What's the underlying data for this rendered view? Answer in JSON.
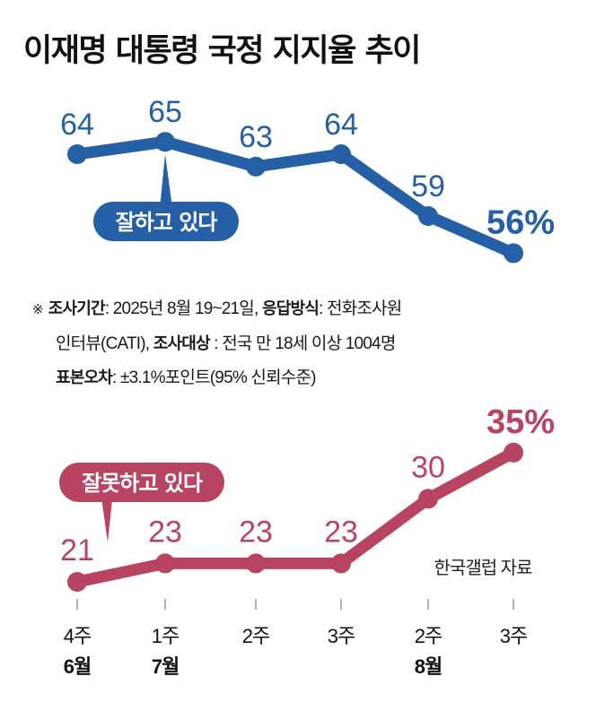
{
  "title": "이재명 대통령 국정 지지율 추이",
  "colors": {
    "approve": "#2560a6",
    "disapprove": "#b94461",
    "text": "#111111"
  },
  "note": {
    "mark": "※",
    "l1_b1": "조사기간",
    "l1_t1": ": 2025년 8월 19~21일, ",
    "l1_b2": "응답방식",
    "l1_t2": ": 전화조사원",
    "l2_t1": "인터뷰(CATI), ",
    "l2_b1": "조사대상",
    "l2_t2": " : 전국 만 18세 이상 1004명",
    "l3_b1": "표본오차",
    "l3_t1": ": ±3.1%포인트(95% 신뢰수준)"
  },
  "source": "한국갤럽 자료",
  "chart_data": {
    "type": "line",
    "title": "이재명 대통령 국정 지지율 추이",
    "x_weeks": [
      "4주",
      "1주",
      "2주",
      "3주",
      "2주",
      "3주"
    ],
    "x_months": [
      "6월",
      "7월",
      "",
      "",
      "8월",
      ""
    ],
    "unit": "%",
    "series": [
      {
        "name": "잘하고 있다",
        "values": [
          64,
          65,
          63,
          64,
          59,
          56
        ],
        "labels": [
          "64",
          "65",
          "63",
          "64",
          "59",
          "56%"
        ]
      },
      {
        "name": "잘못하고 있다",
        "values": [
          21,
          23,
          23,
          23,
          30,
          35
        ],
        "labels": [
          "21",
          "23",
          "23",
          "23",
          "30",
          "35%"
        ]
      }
    ],
    "grid": false,
    "legend": "inline callouts"
  }
}
